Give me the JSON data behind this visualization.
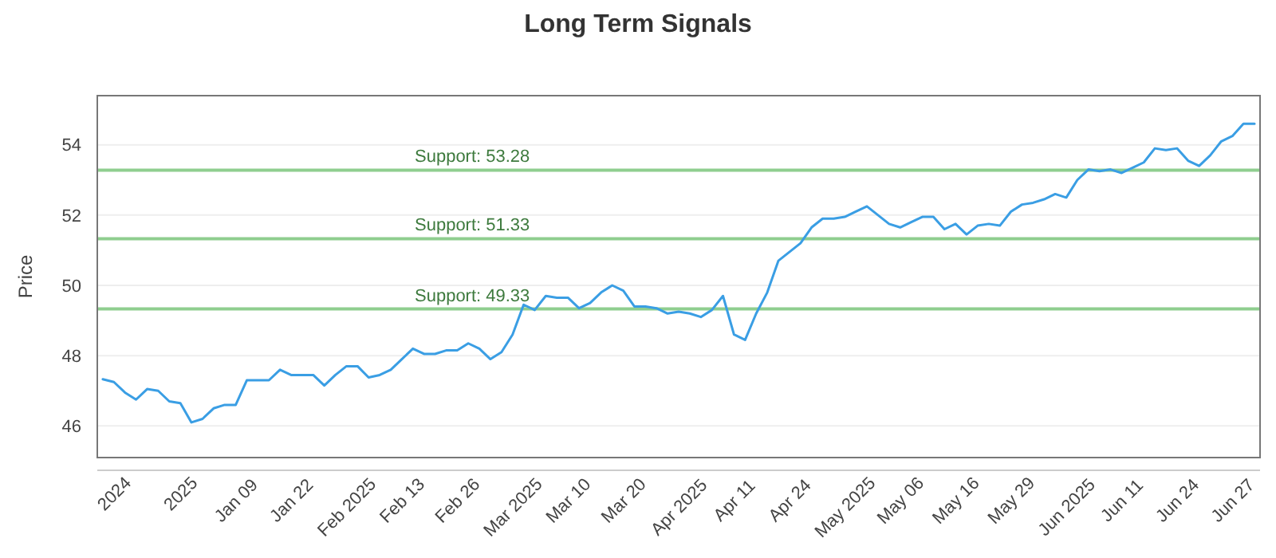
{
  "chart_data": {
    "type": "line",
    "title": "Long Term Signals",
    "ylabel": "Price",
    "categories": [
      null,
      "2024",
      null,
      null,
      null,
      null,
      null,
      "2025",
      null,
      null,
      null,
      null,
      "Jan 09",
      null,
      null,
      null,
      null,
      "Jan 22",
      null,
      null,
      null,
      null,
      "Feb 2025",
      null,
      null,
      null,
      null,
      "Feb 13",
      null,
      null,
      null,
      null,
      "Feb 26",
      null,
      null,
      null,
      null,
      "Mar 2025",
      null,
      null,
      null,
      null,
      "Mar 10",
      null,
      null,
      null,
      null,
      "Mar 20",
      null,
      null,
      null,
      null,
      "Apr 2025",
      null,
      null,
      null,
      null,
      "Apr 11",
      null,
      null,
      null,
      null,
      "Apr 24",
      null,
      null,
      null,
      null,
      "May 2025",
      null,
      null,
      null,
      null,
      "May 06",
      null,
      null,
      null,
      null,
      "May 16",
      null,
      null,
      null,
      null,
      "May 29",
      null,
      null,
      null,
      null,
      "Jun 2025",
      null,
      null,
      null,
      null,
      "Jun 11",
      null,
      null,
      null,
      null,
      "Jun 24",
      null,
      null,
      null,
      null,
      "Jun 27",
      null,
      null
    ],
    "series": [
      {
        "color": "#3a9ee4",
        "values": [
          47.33,
          47.25,
          46.95,
          46.75,
          47.05,
          47.0,
          46.7,
          46.65,
          46.1,
          46.2,
          46.5,
          46.6,
          46.6,
          47.3,
          47.3,
          47.3,
          47.6,
          47.45,
          47.45,
          47.45,
          47.15,
          47.45,
          47.7,
          47.7,
          47.38,
          47.45,
          47.6,
          47.9,
          48.2,
          48.05,
          48.05,
          48.15,
          48.15,
          48.35,
          48.2,
          47.9,
          48.1,
          48.6,
          49.45,
          49.3,
          49.7,
          49.65,
          49.65,
          49.35,
          49.5,
          49.8,
          50.0,
          49.85,
          49.4,
          49.4,
          49.35,
          49.2,
          49.25,
          49.2,
          49.1,
          49.3,
          49.7,
          48.6,
          48.45,
          49.2,
          49.8,
          50.7,
          50.95,
          51.2,
          51.65,
          51.9,
          51.9,
          51.95,
          52.1,
          52.25,
          52.0,
          51.75,
          51.65,
          51.8,
          51.95,
          51.95,
          51.6,
          51.75,
          51.45,
          51.7,
          51.75,
          51.7,
          52.1,
          52.3,
          52.35,
          52.45,
          52.6,
          52.5,
          53.0,
          53.3,
          53.25,
          53.3,
          53.2,
          53.35,
          53.5,
          53.9,
          53.85,
          53.9,
          53.55,
          53.4,
          53.7,
          54.1,
          54.25,
          54.6,
          54.6
        ]
      }
    ],
    "ylim": [
      45.1,
      55.4
    ],
    "yticks": [
      46,
      48,
      50,
      52,
      54
    ],
    "grid": "y",
    "marker": "none",
    "line_style": "solid",
    "ref_lines": [
      {
        "axis": "y",
        "value": 53.28,
        "label": "Support: 53.28",
        "color": "#8fce8f"
      },
      {
        "axis": "y",
        "value": 51.33,
        "label": "Support: 51.33",
        "color": "#8fce8f"
      },
      {
        "axis": "y",
        "value": 49.33,
        "label": "Support: 49.33",
        "color": "#8fce8f"
      }
    ]
  }
}
